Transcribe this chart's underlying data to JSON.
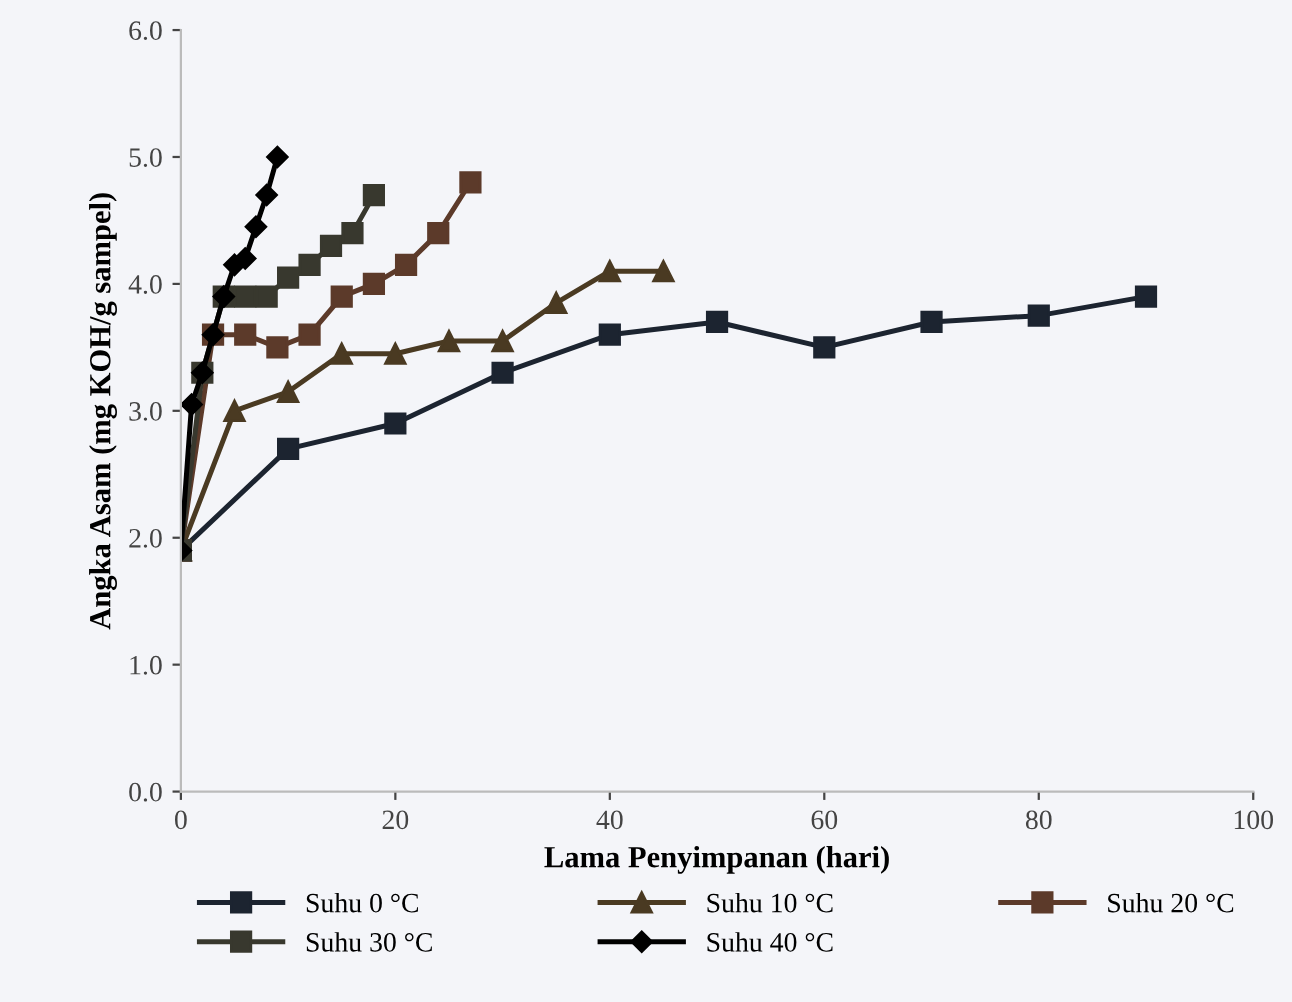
{
  "chart_data": {
    "type": "line",
    "xlabel": "Lama Penyimpanan (hari)",
    "ylabel": "Angka Asam (mg KOH/g sampel)",
    "xlim": [
      0,
      100
    ],
    "xticks": [
      0,
      20,
      40,
      60,
      80,
      100
    ],
    "ylim": [
      0,
      6
    ],
    "yticks": [
      {
        "value": 0,
        "label": "0.0"
      },
      {
        "value": 1,
        "label": "1.0"
      },
      {
        "value": 2,
        "label": "2.0"
      },
      {
        "value": 3,
        "label": "3.0"
      },
      {
        "value": 4,
        "label": "4.0"
      },
      {
        "value": 5,
        "label": "5.0"
      },
      {
        "value": 6,
        "label": "6.0"
      }
    ],
    "grid": false,
    "legend": "bottom",
    "line_style": "solid",
    "series": [
      {
        "name": "Suhu 0 °C",
        "color": "#1c2430",
        "marker": "square",
        "x": [
          0,
          10,
          20,
          30,
          40,
          50,
          60,
          70,
          80,
          90
        ],
        "values": [
          1.9,
          2.7,
          2.9,
          3.3,
          3.6,
          3.7,
          3.5,
          3.7,
          3.75,
          3.9
        ]
      },
      {
        "name": "Suhu 10 °C",
        "color": "#4a3a22",
        "marker": "triangle",
        "x": [
          0,
          5,
          10,
          15,
          20,
          25,
          30,
          35,
          40,
          45
        ],
        "values": [
          1.9,
          3.0,
          3.15,
          3.45,
          3.45,
          3.55,
          3.55,
          3.85,
          4.1,
          4.1
        ]
      },
      {
        "name": "Suhu 20 °C",
        "color": "#5c3a2a",
        "marker": "square",
        "x": [
          0,
          3,
          6,
          9,
          12,
          15,
          18,
          21,
          24,
          27
        ],
        "values": [
          1.9,
          3.6,
          3.6,
          3.5,
          3.6,
          3.9,
          4.0,
          4.15,
          4.4,
          4.8
        ]
      },
      {
        "name": "Suhu 30 °C",
        "color": "#38382e",
        "marker": "square",
        "x": [
          0,
          2,
          4,
          6,
          8,
          10,
          12,
          14,
          16,
          18
        ],
        "values": [
          1.9,
          3.3,
          3.9,
          3.9,
          3.9,
          4.05,
          4.15,
          4.3,
          4.4,
          4.7
        ]
      },
      {
        "name": "Suhu 40 °C",
        "color": "#000000",
        "marker": "diamond",
        "x": [
          0,
          1,
          2,
          3,
          4,
          5,
          6,
          7,
          8,
          9
        ],
        "values": [
          1.9,
          3.05,
          3.3,
          3.6,
          3.9,
          4.15,
          4.2,
          4.45,
          4.7,
          5.0
        ]
      }
    ]
  }
}
